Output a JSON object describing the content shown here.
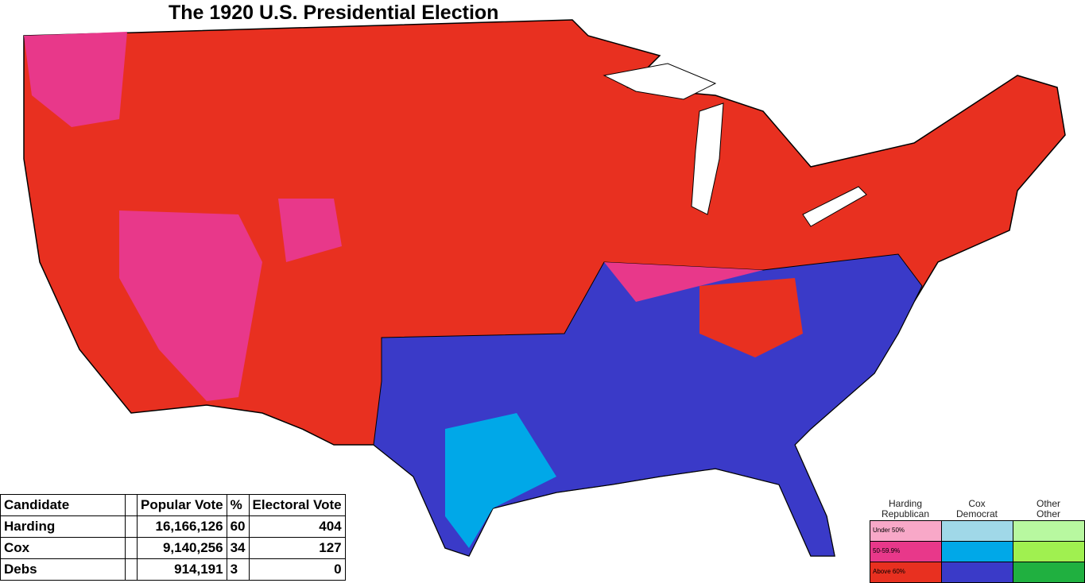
{
  "title": "The 1920 U.S. Presidential Election",
  "results_table": {
    "headers": {
      "candidate": "Candidate",
      "popular_vote": "Popular Vote",
      "percent": "%",
      "electoral_vote": "Electoral Vote"
    },
    "rows": [
      {
        "candidate": "Harding",
        "popular_vote": "16,166,126",
        "percent": 60,
        "electoral_vote": 404
      },
      {
        "candidate": "Cox",
        "popular_vote": "9,140,256",
        "percent": 34,
        "electoral_vote": 127
      },
      {
        "candidate": "Debs",
        "popular_vote": "914,191",
        "percent": 3,
        "electoral_vote": 0
      }
    ]
  },
  "legend": {
    "columns": [
      {
        "candidate": "Harding",
        "party": "Republican",
        "colors": [
          "#f8a8c8",
          "#e8388a",
          "#e83020"
        ]
      },
      {
        "candidate": "Cox",
        "party": "Democrat",
        "colors": [
          "#a0d8e8",
          "#00a8e8",
          "#3a3ac8"
        ]
      },
      {
        "candidate": "Other",
        "party": "Other",
        "colors": [
          "#b8f8a0",
          "#a0f050",
          "#20b040"
        ]
      }
    ],
    "rows": [
      "Under 50%",
      "50-59.9%",
      "Above 60%"
    ]
  }
}
